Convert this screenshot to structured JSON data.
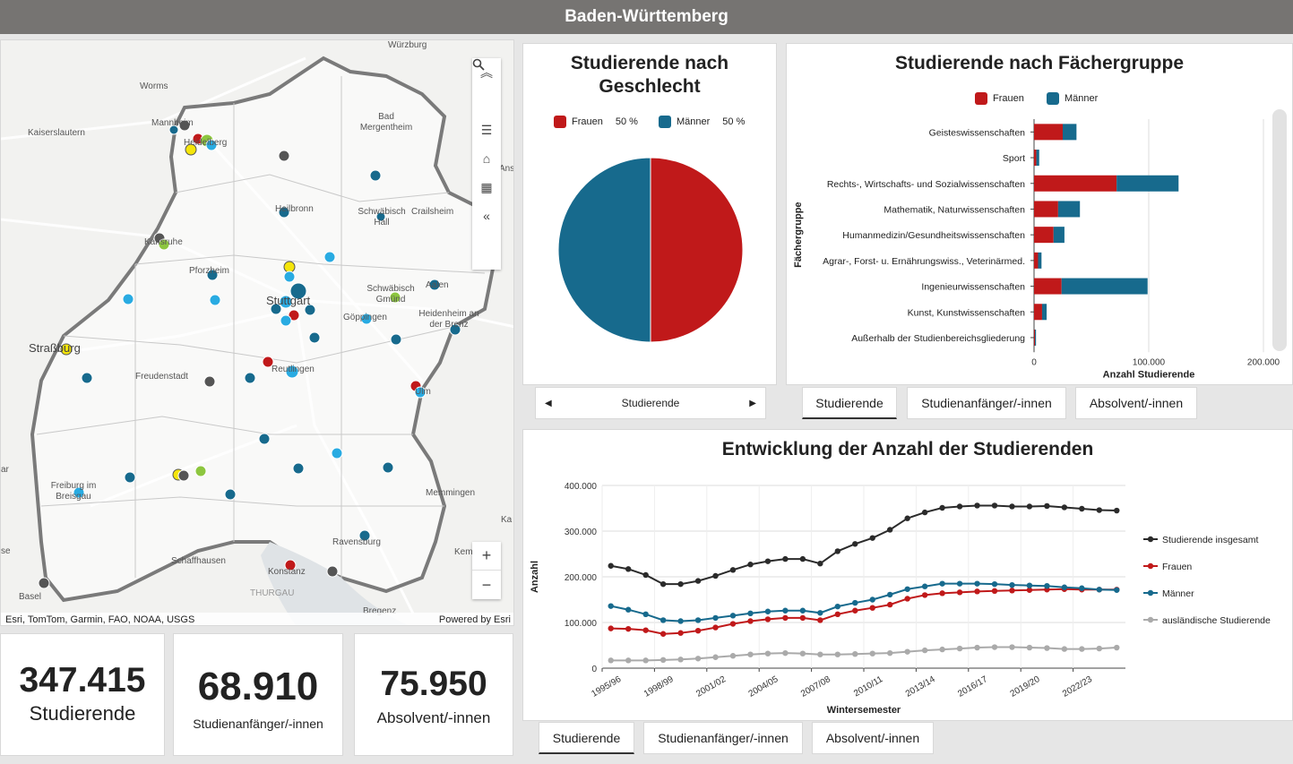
{
  "header": {
    "title": "Baden-Württemberg"
  },
  "map": {
    "labels": [
      "Würzburg",
      "Worms",
      "Mannheim",
      "Kaiserslautern",
      "Heidelberg",
      "Bad Mergentheim",
      "Heilbronn",
      "Schwäbisch Hall",
      "Crailsheim",
      "Karlsruhe",
      "Pforzheim",
      "Stuttgart",
      "Schwäbisch Gmünd",
      "Aalen",
      "Göppingen",
      "Heidenheim an der Brenz",
      "Straßburg",
      "Freudenstadt",
      "Reutlingen",
      "Ulm",
      "Freiburg im Breisgau",
      "Memmingen",
      "Ravensburg",
      "Schaffhausen",
      "Konstanz",
      "THURGAU",
      "Basel",
      "Bregenz",
      "Kempten (Allgäu)",
      "Ans",
      "ar",
      "se",
      "Ka"
    ],
    "attribution_left": "Esri, TomTom, Garmin, FAO, NOAA, USGS",
    "attribution_right": "Powered by Esri",
    "tools": [
      "collapse-up-icon",
      "search-icon",
      "legend-list-icon",
      "home-icon",
      "qr-code-icon",
      "collapse-left-icon"
    ],
    "zoom_in": "+",
    "zoom_out": "−"
  },
  "kpis": [
    {
      "value": "347.415",
      "label": "Studierende"
    },
    {
      "value": "68.910",
      "label": "Studienanfänger/-innen"
    },
    {
      "value": "75.950",
      "label": "Absolvent/-innen"
    }
  ],
  "gender": {
    "title_line1": "Studierende nach",
    "title_line2": "Geschlecht",
    "legend": [
      {
        "name": "Frauen",
        "pct": "50 %",
        "color": "#c0191a"
      },
      {
        "name": "Männer",
        "pct": "50 %",
        "color": "#176a8d"
      }
    ],
    "nav_label": "Studierende",
    "nav_prev": "◀",
    "nav_next": "▶"
  },
  "subjects": {
    "title": "Studierende nach Fächergruppe",
    "legend": [
      {
        "name": "Frauen",
        "color": "#c0191a"
      },
      {
        "name": "Männer",
        "color": "#176a8d"
      }
    ],
    "tabs": [
      "Studierende",
      "Studienanfänger/-innen",
      "Absolvent/-innen"
    ]
  },
  "trend": {
    "title": "Entwicklung der Anzahl der Studierenden",
    "tabs": [
      "Studierende",
      "Studienanfänger/-innen",
      "Absolvent/-innen"
    ]
  },
  "chart_data": [
    {
      "type": "pie",
      "title": "Studierende nach Geschlecht",
      "categories": [
        "Frauen",
        "Männer"
      ],
      "values": [
        50,
        50
      ],
      "colors": [
        "#c0191a",
        "#176a8d"
      ]
    },
    {
      "type": "bar",
      "orientation": "horizontal",
      "stacked": true,
      "title": "Studierende nach Fächergruppe",
      "ylabel": "Fächergruppe",
      "xlabel": "Anzahl Studierende",
      "xlim": [
        0,
        200000
      ],
      "xticks": [
        "0",
        "100.000",
        "200.000"
      ],
      "categories": [
        "Geisteswissenschaften",
        "Sport",
        "Rechts-, Wirtschafts- und Sozialwissenschaften",
        "Mathematik, Naturwissenschaften",
        "Humanmedizin/Gesundheitswissenschaften",
        "Agrar-, Forst- u. Ernährungswiss., Veterinärmed.",
        "Ingenieurwissenschaften",
        "Kunst, Kunstwissenschaften",
        "Außerhalb der Studienbereichsgliederung"
      ],
      "series": [
        {
          "name": "Frauen",
          "color": "#c0191a",
          "values": [
            25000,
            2000,
            72000,
            21000,
            17000,
            3500,
            24000,
            7000,
            800
          ]
        },
        {
          "name": "Männer",
          "color": "#176a8d",
          "values": [
            12000,
            2500,
            54000,
            19000,
            9500,
            3000,
            75000,
            4000,
            900
          ]
        }
      ]
    },
    {
      "type": "line",
      "title": "Entwicklung der Anzahl der Studierenden",
      "xlabel": "Wintersemester",
      "ylabel": "Anzahl",
      "ylim": [
        0,
        400000
      ],
      "yticks": [
        "0",
        "100.000",
        "200.000",
        "300.000",
        "400.000"
      ],
      "x": [
        "1995/96",
        "1996/97",
        "1997/98",
        "1998/99",
        "1999/00",
        "2000/01",
        "2001/02",
        "2002/03",
        "2003/04",
        "2004/05",
        "2005/06",
        "2006/07",
        "2007/08",
        "2008/09",
        "2009/10",
        "2010/11",
        "2011/12",
        "2012/13",
        "2013/14",
        "2014/15",
        "2015/16",
        "2016/17",
        "2017/18",
        "2018/19",
        "2019/20",
        "2020/21",
        "2021/22",
        "2022/23",
        "2023/24",
        "2024/25"
      ],
      "xtick_labels": [
        "1995/96",
        "1998/99",
        "2001/02",
        "2004/05",
        "2007/08",
        "2010/11",
        "2013/14",
        "2016/17",
        "2019/20",
        "2022/23"
      ],
      "series": [
        {
          "name": "Studierende insgesamt",
          "color": "#2b2b2b",
          "values": [
            224000,
            217000,
            204000,
            184000,
            184000,
            191000,
            202000,
            215000,
            227000,
            234000,
            239000,
            239000,
            229000,
            256000,
            272000,
            285000,
            303000,
            328000,
            341000,
            351000,
            354000,
            356000,
            356000,
            354000,
            354000,
            355000,
            352000,
            349000,
            346000,
            345000
          ]
        },
        {
          "name": "Frauen",
          "color": "#c0191a",
          "values": [
            87000,
            86000,
            83000,
            75000,
            77000,
            82000,
            89000,
            97000,
            103000,
            107000,
            110000,
            110000,
            105000,
            118000,
            126000,
            132000,
            139000,
            152000,
            160000,
            164000,
            166000,
            168000,
            169000,
            170000,
            171000,
            172000,
            173000,
            172000,
            172000,
            172000
          ]
        },
        {
          "name": "Männer",
          "color": "#176a8d",
          "values": [
            136000,
            128000,
            118000,
            105000,
            103000,
            105000,
            110000,
            115000,
            120000,
            124000,
            126000,
            126000,
            121000,
            135000,
            143000,
            150000,
            161000,
            173000,
            179000,
            185000,
            185000,
            185000,
            184000,
            182000,
            181000,
            180000,
            177000,
            175000,
            172000,
            171000
          ]
        },
        {
          "name": "ausländische Studierende",
          "color": "#aaaaaa",
          "values": [
            17000,
            17000,
            17000,
            18000,
            19000,
            21000,
            24000,
            27000,
            30000,
            32000,
            33000,
            32000,
            30000,
            30000,
            31000,
            32000,
            33000,
            36000,
            39000,
            41000,
            43000,
            45000,
            46000,
            46000,
            45000,
            44000,
            42000,
            42000,
            43000,
            45000
          ]
        }
      ]
    }
  ]
}
